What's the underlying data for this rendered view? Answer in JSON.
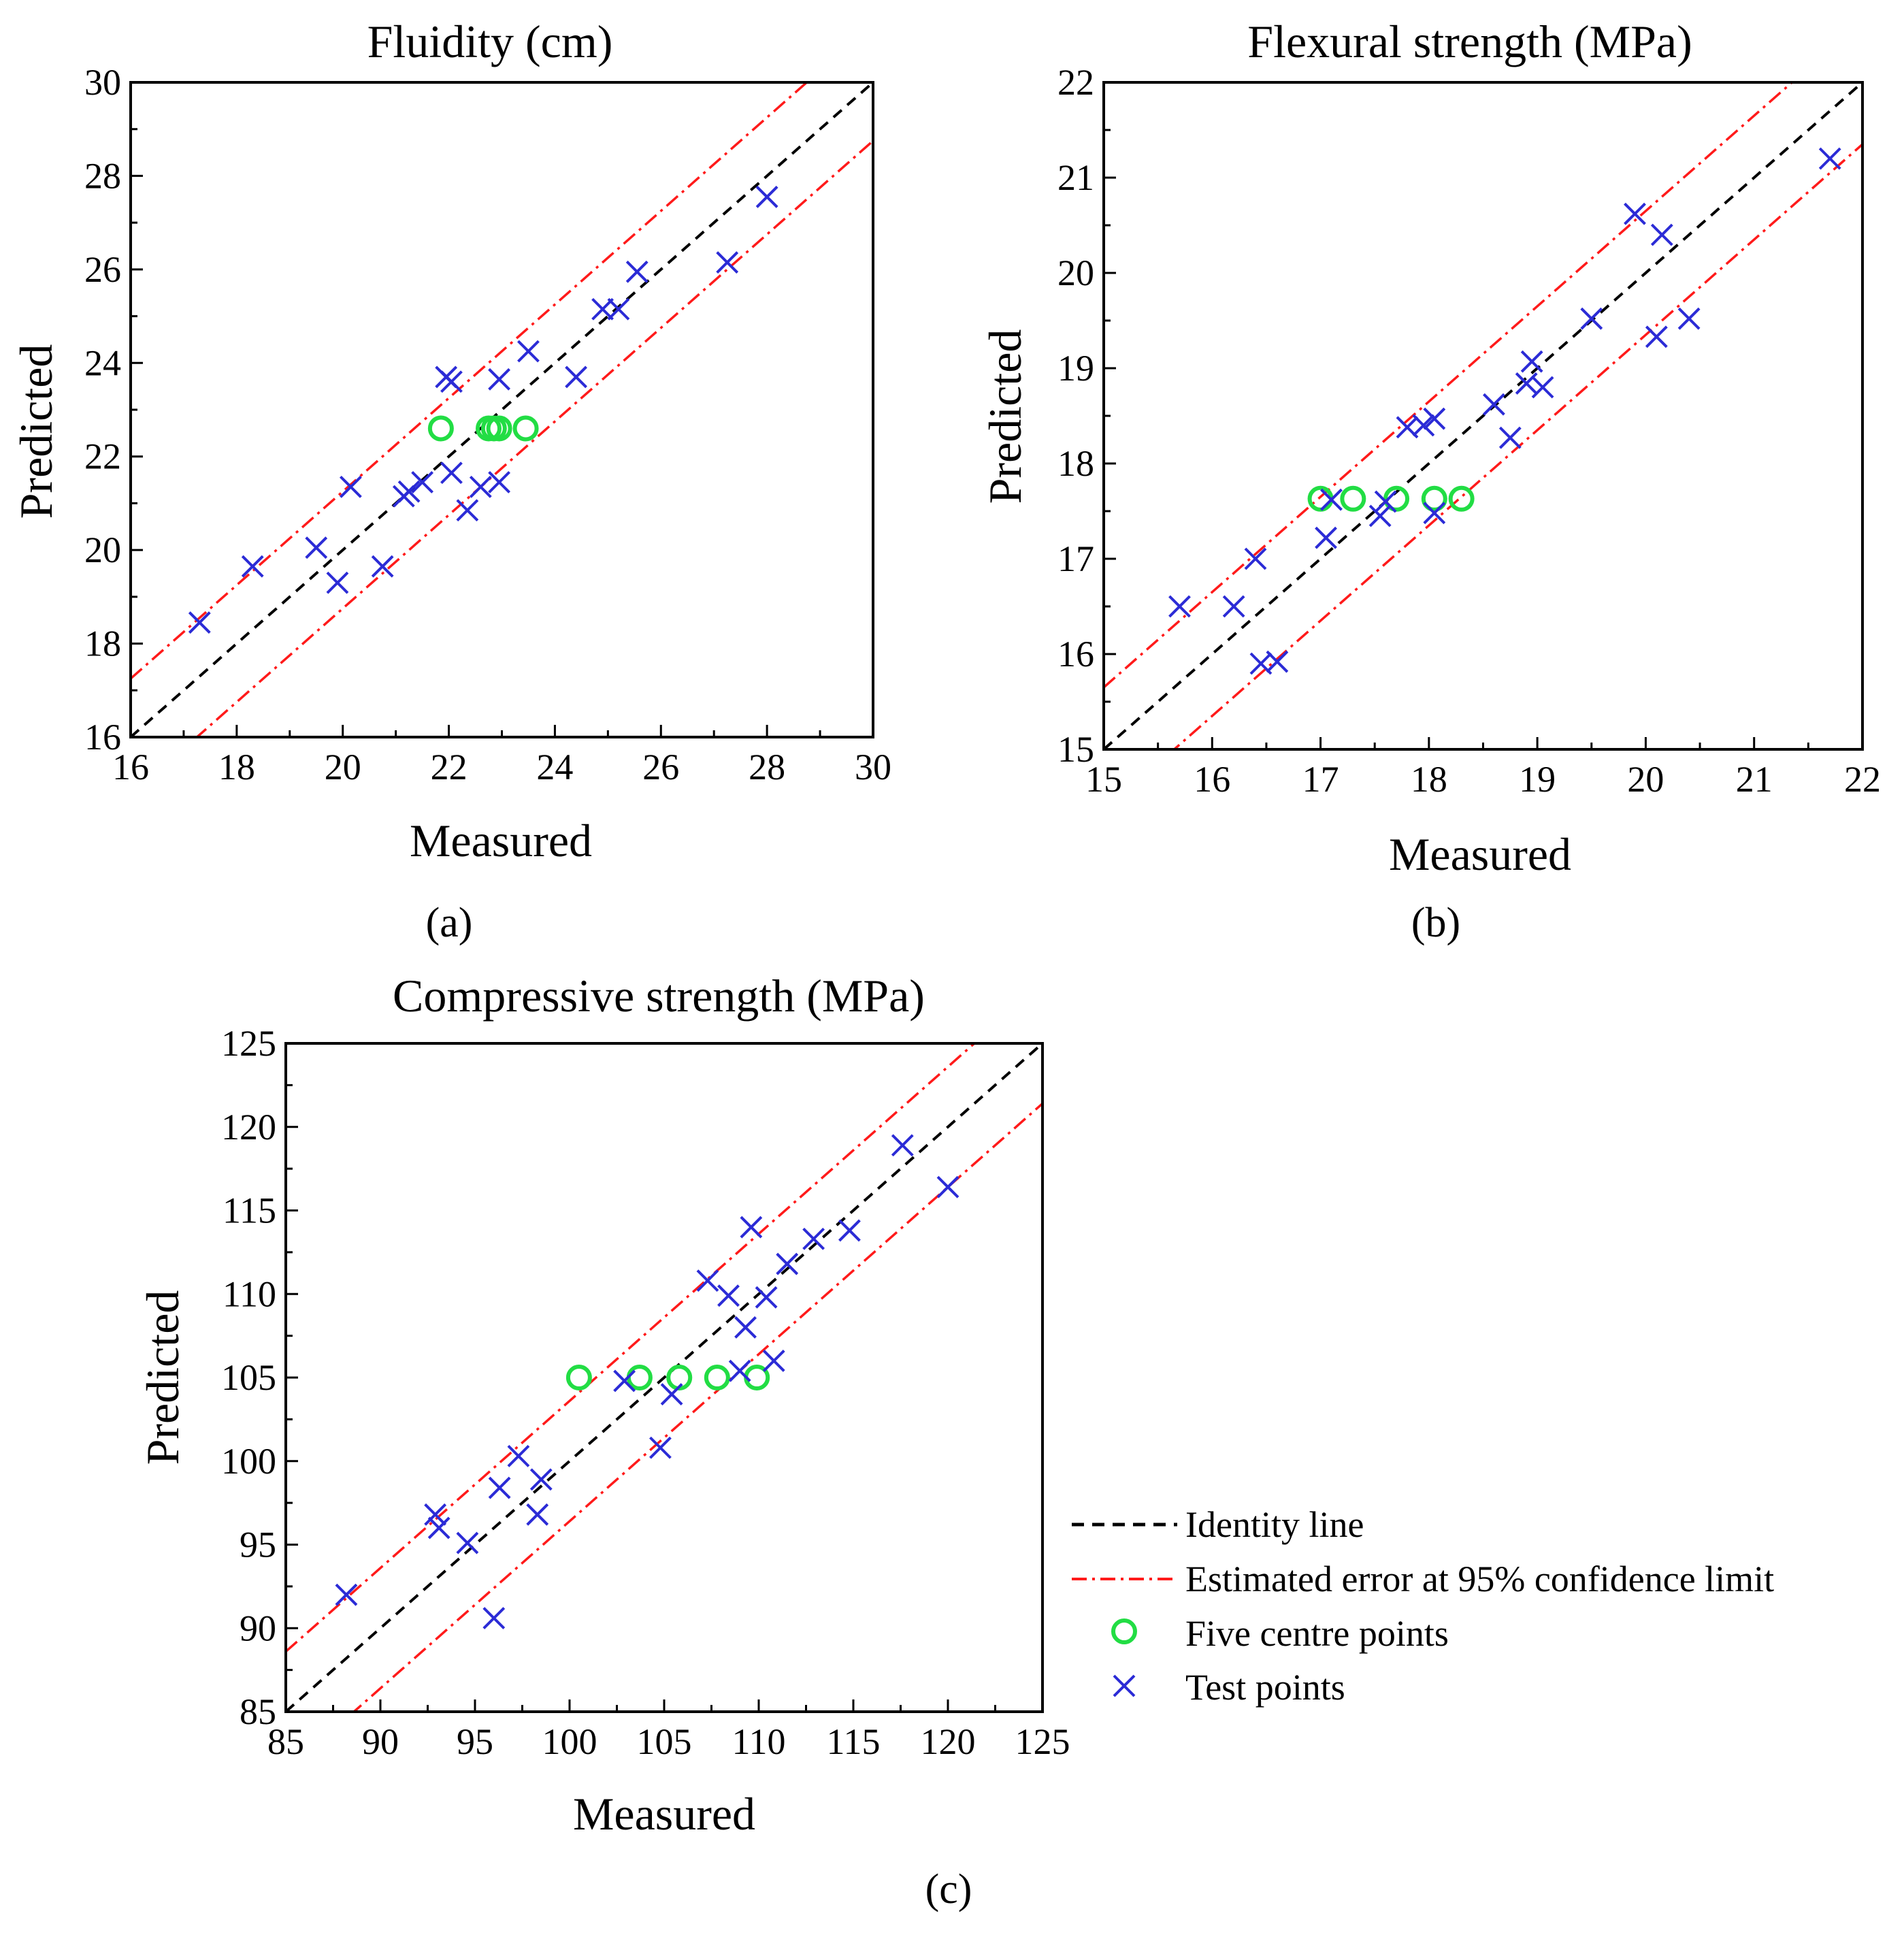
{
  "colors": {
    "identity": "#000000",
    "confidence": "#ff1a1a",
    "centre": "#22dd44",
    "test": "#2b2bd6",
    "axes": "#000000"
  },
  "legend": {
    "identity_label": "Identity line",
    "confidence_label": "Estimated error at 95% confidence limit",
    "centre_label": "Five centre points",
    "test_label": "Test points"
  },
  "chart_data": [
    {
      "type": "scatter",
      "panel_label": "(a)",
      "title": "Fluidity (cm)",
      "xlabel": "Measured",
      "ylabel": "Predicted",
      "xlim": [
        16,
        30
      ],
      "ylim": [
        16,
        30
      ],
      "xticks": [
        16,
        18,
        20,
        22,
        24,
        26,
        28,
        30
      ],
      "yticks": [
        16,
        18,
        20,
        22,
        24,
        26,
        28,
        30
      ],
      "confidence_offset": 1.25,
      "centre_points": [
        [
          21.85,
          22.6
        ],
        [
          22.75,
          22.6
        ],
        [
          22.95,
          22.6
        ],
        [
          23.45,
          22.6
        ],
        [
          22.85,
          22.6
        ]
      ],
      "test_points": [
        [
          17.3,
          18.45
        ],
        [
          18.3,
          19.65
        ],
        [
          19.5,
          20.05
        ],
        [
          19.9,
          19.3
        ],
        [
          20.15,
          21.35
        ],
        [
          20.75,
          19.65
        ],
        [
          21.15,
          21.15
        ],
        [
          21.25,
          21.25
        ],
        [
          21.5,
          21.45
        ],
        [
          21.95,
          23.7
        ],
        [
          22.05,
          23.6
        ],
        [
          22.05,
          21.65
        ],
        [
          22.35,
          20.85
        ],
        [
          22.6,
          21.35
        ],
        [
          22.95,
          21.45
        ],
        [
          22.95,
          23.65
        ],
        [
          23.5,
          24.25
        ],
        [
          24.4,
          23.7
        ],
        [
          24.9,
          25.15
        ],
        [
          25.2,
          25.15
        ],
        [
          25.55,
          25.95
        ],
        [
          27.25,
          26.15
        ],
        [
          28.0,
          27.55
        ]
      ]
    },
    {
      "type": "scatter",
      "panel_label": "(b)",
      "title": "Flexural strength (MPa)",
      "xlabel": "Measured",
      "ylabel": "Predicted",
      "xlim": [
        15,
        22
      ],
      "ylim": [
        15,
        22
      ],
      "xticks": [
        15,
        16,
        17,
        18,
        19,
        20,
        21,
        22
      ],
      "yticks": [
        15,
        16,
        17,
        18,
        19,
        20,
        21,
        22
      ],
      "confidence_offset": 0.65,
      "centre_points": [
        [
          17.0,
          17.63
        ],
        [
          17.3,
          17.63
        ],
        [
          17.7,
          17.63
        ],
        [
          18.05,
          17.63
        ],
        [
          18.3,
          17.63
        ]
      ],
      "test_points": [
        [
          15.7,
          16.5
        ],
        [
          16.2,
          16.5
        ],
        [
          16.4,
          17.0
        ],
        [
          16.45,
          15.9
        ],
        [
          16.6,
          15.92
        ],
        [
          17.05,
          17.22
        ],
        [
          17.1,
          17.62
        ],
        [
          17.55,
          17.45
        ],
        [
          17.6,
          17.6
        ],
        [
          17.8,
          18.38
        ],
        [
          17.95,
          18.4
        ],
        [
          18.05,
          18.47
        ],
        [
          18.05,
          17.48
        ],
        [
          18.6,
          18.62
        ],
        [
          18.75,
          18.27
        ],
        [
          18.9,
          18.84
        ],
        [
          18.95,
          19.07
        ],
        [
          19.05,
          18.8
        ],
        [
          19.5,
          19.52
        ],
        [
          19.9,
          20.62
        ],
        [
          20.1,
          19.33
        ],
        [
          20.15,
          20.4
        ],
        [
          20.4,
          19.52
        ],
        [
          21.7,
          21.2
        ]
      ]
    },
    {
      "type": "scatter",
      "panel_label": "(c)",
      "title": "Compressive strength (MPa)",
      "xlabel": "Measured",
      "ylabel": "Predicted",
      "xlim": [
        85,
        125
      ],
      "ylim": [
        85,
        125
      ],
      "xticks": [
        85,
        90,
        95,
        100,
        105,
        110,
        115,
        120,
        125
      ],
      "yticks": [
        85,
        90,
        95,
        100,
        105,
        110,
        115,
        120,
        125
      ],
      "confidence_offset": 3.6,
      "centre_points": [
        [
          100.5,
          105.0
        ],
        [
          103.7,
          105.0
        ],
        [
          105.8,
          105.0
        ],
        [
          107.8,
          105.0
        ],
        [
          109.9,
          105.0
        ]
      ],
      "test_points": [
        [
          88.2,
          92.0
        ],
        [
          92.9,
          96.8
        ],
        [
          93.1,
          96.0
        ],
        [
          94.6,
          95.1
        ],
        [
          96.0,
          90.6
        ],
        [
          96.3,
          98.4
        ],
        [
          97.3,
          100.3
        ],
        [
          98.3,
          96.8
        ],
        [
          98.5,
          98.9
        ],
        [
          102.9,
          104.8
        ],
        [
          104.8,
          100.8
        ],
        [
          105.4,
          104.0
        ],
        [
          107.3,
          110.8
        ],
        [
          108.4,
          109.9
        ],
        [
          109.0,
          105.4
        ],
        [
          109.3,
          108.0
        ],
        [
          109.6,
          114.0
        ],
        [
          110.4,
          109.8
        ],
        [
          110.8,
          106.0
        ],
        [
          111.5,
          111.8
        ],
        [
          112.9,
          113.3
        ],
        [
          114.8,
          113.8
        ],
        [
          117.6,
          118.9
        ],
        [
          120.0,
          116.4
        ]
      ]
    }
  ]
}
